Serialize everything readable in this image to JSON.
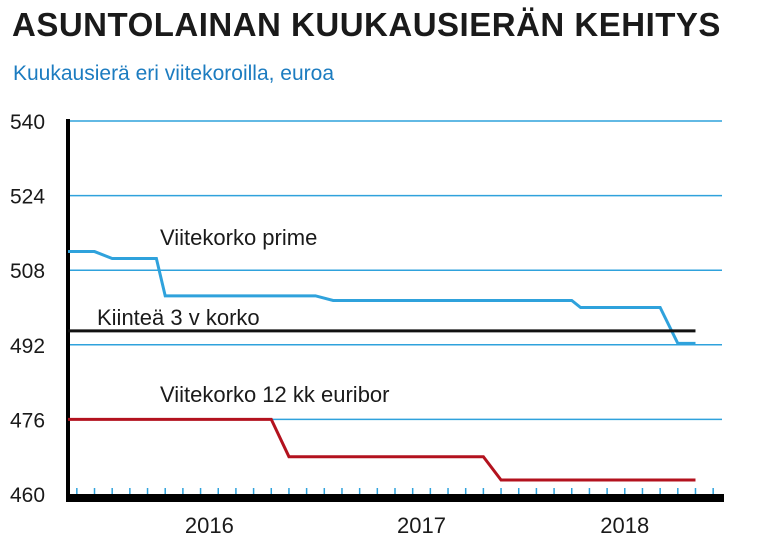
{
  "header": {
    "title": "ASUNTOLAINAN KUUKAUSIERÄN KEHITYS",
    "subtitle": "Kuukausierä eri viitekoroilla, euroa"
  },
  "colors": {
    "prime": "#2fa2dc",
    "fixed": "#111111",
    "euribor": "#b3121e",
    "grid": "#2fa2dc",
    "subtitle": "#1c7cc0"
  },
  "chart_data": {
    "type": "line",
    "title": "ASUNTOLAINAN KUUKAUSIERÄN KEHITYS",
    "subtitle": "Kuukausierä eri viitekoroilla, euroa",
    "ylim": [
      460,
      540
    ],
    "yticks": [
      460,
      476,
      492,
      508,
      524,
      540
    ],
    "xlim": [
      0,
      37
    ],
    "x_tick_labels": [
      {
        "label": "2016",
        "x": 8
      },
      {
        "label": "2017",
        "x": 20
      },
      {
        "label": "2018",
        "x": 31.5
      }
    ],
    "grid": "horizontal",
    "series": [
      {
        "name": "Viitekorko prime",
        "color": "#2fa2dc",
        "x": [
          0,
          1.5,
          2.5,
          5,
          5.5,
          14,
          15,
          28.5,
          29,
          33.5,
          34.5,
          35.5
        ],
        "y": [
          512,
          512,
          510.5,
          510.5,
          502.5,
          502.5,
          501.5,
          501.5,
          500,
          500,
          492.3,
          492.3
        ]
      },
      {
        "name": "Kiinteä 3 v korko",
        "color": "#111111",
        "x": [
          0,
          35.5
        ],
        "y": [
          495,
          495
        ]
      },
      {
        "name": "Viitekorko 12 kk eurobor",
        "display_name": "Viitekorko 12 kk euribor",
        "color": "#b3121e",
        "x": [
          0,
          11.5,
          12.5,
          23.5,
          24.5,
          35.5
        ],
        "y": [
          476,
          476,
          468,
          468,
          463,
          463
        ]
      }
    ]
  }
}
